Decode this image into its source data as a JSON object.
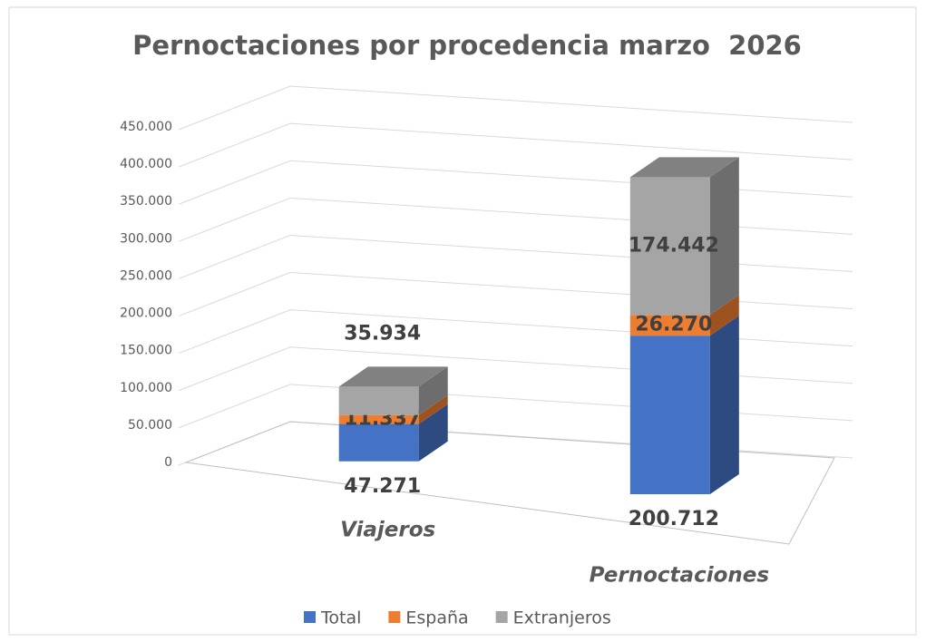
{
  "chart_data": {
    "type": "bar3d_stacked",
    "title": "Pernoctaciones por procedencia marzo  2026",
    "categories": [
      "Viajeros",
      "Pernoctaciones"
    ],
    "series": [
      {
        "name": "Total",
        "color": "#4472c4",
        "values": [
          47271,
          200712
        ],
        "value_labels": [
          "47.271",
          "200.712"
        ]
      },
      {
        "name": "España",
        "color": "#ed7d31",
        "values": [
          11337,
          26270
        ],
        "value_labels": [
          "11.337",
          "26.270"
        ]
      },
      {
        "name": "Extranjeros",
        "color": "#a5a5a5",
        "values": [
          35934,
          174442
        ],
        "value_labels": [
          "35.934",
          "174.442"
        ]
      }
    ],
    "ylim": [
      0,
      450000
    ],
    "yticks": [
      {
        "value": 0,
        "label": "0"
      },
      {
        "value": 50000,
        "label": "50.000"
      },
      {
        "value": 100000,
        "label": "100.000"
      },
      {
        "value": 150000,
        "label": "150.000"
      },
      {
        "value": 200000,
        "label": "200.000"
      },
      {
        "value": 250000,
        "label": "250.000"
      },
      {
        "value": 300000,
        "label": "300.000"
      },
      {
        "value": 350000,
        "label": "350.000"
      },
      {
        "value": 400000,
        "label": "400.000"
      },
      {
        "value": 450000,
        "label": "450.000"
      }
    ],
    "grid": true,
    "legend": "bottom"
  }
}
